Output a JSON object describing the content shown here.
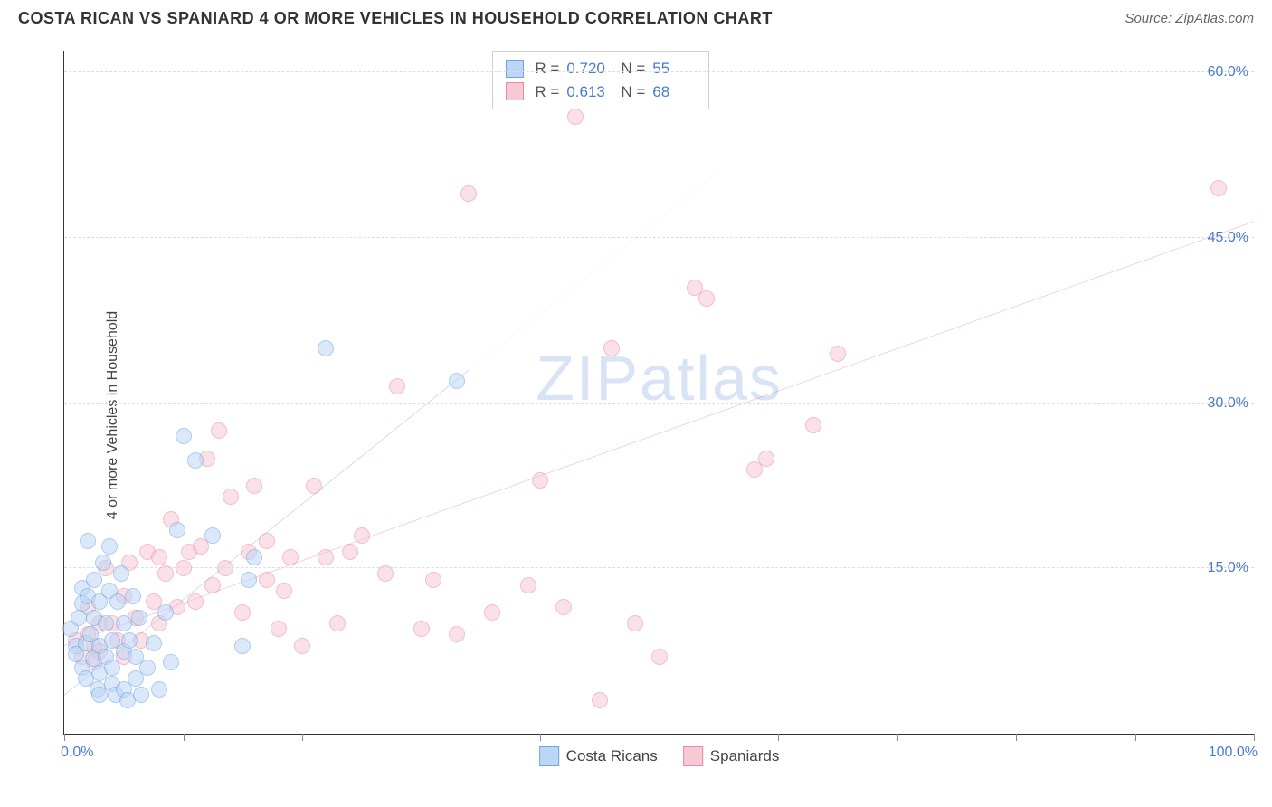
{
  "title": "COSTA RICAN VS SPANIARD 4 OR MORE VEHICLES IN HOUSEHOLD CORRELATION CHART",
  "source": "Source: ZipAtlas.com",
  "ylabel": "4 or more Vehicles in Household",
  "watermark": "ZIPatlas",
  "chart": {
    "type": "scatter",
    "xlim": [
      0,
      100
    ],
    "ylim": [
      0,
      62
    ],
    "x_axis_min_label": "0.0%",
    "x_axis_max_label": "100.0%",
    "y_ticks": [
      15.0,
      30.0,
      45.0,
      60.0
    ],
    "y_tick_labels": [
      "15.0%",
      "30.0%",
      "45.0%",
      "60.0%"
    ],
    "x_tick_positions": [
      0,
      10,
      20,
      30,
      40,
      50,
      60,
      70,
      80,
      90,
      100
    ],
    "grid_color": "#dddddd",
    "axis_color": "#333333",
    "tick_label_color": "#4a7bd0",
    "background_color": "#ffffff",
    "marker_radius": 9,
    "marker_border_width": 1.5
  },
  "series": {
    "costa_ricans": {
      "label": "Costa Ricans",
      "fill": "#bcd6f5",
      "stroke": "#6fa3e0",
      "fill_alpha": 0.55,
      "trend_color": "#2b6fd6",
      "trend_dash_color": "#9db9e6",
      "R": "0.720",
      "N": "55",
      "trend": {
        "x1": 0,
        "y1": 3.5,
        "x2": 34,
        "y2": 33,
        "x2_dash": 55,
        "y2_dash": 51
      },
      "points": [
        [
          0.5,
          9.5
        ],
        [
          1,
          8.0
        ],
        [
          1,
          7.2
        ],
        [
          1.2,
          10.5
        ],
        [
          1.5,
          6.0
        ],
        [
          1.5,
          11.8
        ],
        [
          1.5,
          13.2
        ],
        [
          1.8,
          8.2
        ],
        [
          1.8,
          5.0
        ],
        [
          2,
          17.5
        ],
        [
          2,
          12.5
        ],
        [
          2.2,
          9.0
        ],
        [
          2.4,
          6.8
        ],
        [
          2.5,
          10.5
        ],
        [
          2.5,
          14.0
        ],
        [
          2.8,
          4.0
        ],
        [
          3,
          8.0
        ],
        [
          3,
          12.0
        ],
        [
          3,
          5.5
        ],
        [
          3,
          3.5
        ],
        [
          3.3,
          15.5
        ],
        [
          3.5,
          7.0
        ],
        [
          3.5,
          10.0
        ],
        [
          3.8,
          13.0
        ],
        [
          3.8,
          17.0
        ],
        [
          4,
          6.0
        ],
        [
          4,
          4.5
        ],
        [
          4,
          8.5
        ],
        [
          4.3,
          3.5
        ],
        [
          4.5,
          12.0
        ],
        [
          4.8,
          14.5
        ],
        [
          5,
          4.0
        ],
        [
          5,
          7.5
        ],
        [
          5,
          10.0
        ],
        [
          5.3,
          3.0
        ],
        [
          5.5,
          8.5
        ],
        [
          5.8,
          12.5
        ],
        [
          6,
          5.0
        ],
        [
          6,
          7.0
        ],
        [
          6.3,
          10.5
        ],
        [
          6.5,
          3.5
        ],
        [
          7,
          6.0
        ],
        [
          7.5,
          8.2
        ],
        [
          8,
          4.0
        ],
        [
          8.5,
          11.0
        ],
        [
          9,
          6.5
        ],
        [
          9.5,
          18.5
        ],
        [
          10,
          27.0
        ],
        [
          11,
          24.8
        ],
        [
          12.5,
          18.0
        ],
        [
          15,
          8.0
        ],
        [
          15.5,
          14.0
        ],
        [
          16,
          16.0
        ],
        [
          22,
          35.0
        ],
        [
          33,
          32.0
        ]
      ]
    },
    "spaniards": {
      "label": "Spaniards",
      "fill": "#f7c9d4",
      "stroke": "#e88aa3",
      "fill_alpha": 0.55,
      "trend_color": "#e05a88",
      "R": "0.613",
      "N": "68",
      "trend": {
        "x1": 0,
        "y1": 8.0,
        "x2": 100,
        "y2": 46.5
      },
      "points": [
        [
          1,
          8.5
        ],
        [
          1.5,
          7.0
        ],
        [
          2,
          9.0
        ],
        [
          2,
          11.5
        ],
        [
          2.5,
          8.0
        ],
        [
          2.5,
          6.5
        ],
        [
          3,
          10.0
        ],
        [
          3,
          7.5
        ],
        [
          3.5,
          15.0
        ],
        [
          4,
          10.0
        ],
        [
          4.5,
          8.5
        ],
        [
          5,
          12.5
        ],
        [
          5,
          7.0
        ],
        [
          5.5,
          15.5
        ],
        [
          6,
          10.5
        ],
        [
          6.5,
          8.5
        ],
        [
          7,
          16.5
        ],
        [
          7.5,
          12.0
        ],
        [
          8,
          10.0
        ],
        [
          8,
          16.0
        ],
        [
          8.5,
          14.5
        ],
        [
          9,
          19.5
        ],
        [
          9.5,
          11.5
        ],
        [
          10,
          15.0
        ],
        [
          10.5,
          16.5
        ],
        [
          11,
          12.0
        ],
        [
          11.5,
          17.0
        ],
        [
          12,
          25.0
        ],
        [
          12.5,
          13.5
        ],
        [
          13,
          27.5
        ],
        [
          13.5,
          15.0
        ],
        [
          14,
          21.5
        ],
        [
          15,
          11.0
        ],
        [
          15.5,
          16.5
        ],
        [
          16,
          22.5
        ],
        [
          17,
          14.0
        ],
        [
          17,
          17.5
        ],
        [
          18,
          9.5
        ],
        [
          18.5,
          13.0
        ],
        [
          19,
          16.0
        ],
        [
          20,
          8.0
        ],
        [
          21,
          22.5
        ],
        [
          22,
          16.0
        ],
        [
          23,
          10.0
        ],
        [
          24,
          16.5
        ],
        [
          25,
          18.0
        ],
        [
          27,
          14.5
        ],
        [
          28,
          31.5
        ],
        [
          30,
          9.5
        ],
        [
          31,
          14.0
        ],
        [
          33,
          9.0
        ],
        [
          34,
          49.0
        ],
        [
          36,
          11.0
        ],
        [
          39,
          13.5
        ],
        [
          40,
          23.0
        ],
        [
          42,
          11.5
        ],
        [
          43,
          56.0
        ],
        [
          45,
          3.0
        ],
        [
          46,
          35.0
        ],
        [
          48,
          10.0
        ],
        [
          50,
          7.0
        ],
        [
          53,
          40.5
        ],
        [
          54,
          39.5
        ],
        [
          58,
          24.0
        ],
        [
          59,
          25.0
        ],
        [
          63,
          28.0
        ],
        [
          65,
          34.5
        ],
        [
          97,
          49.5
        ]
      ]
    }
  },
  "legend": {
    "items": [
      "costa_ricans",
      "spaniards"
    ]
  }
}
